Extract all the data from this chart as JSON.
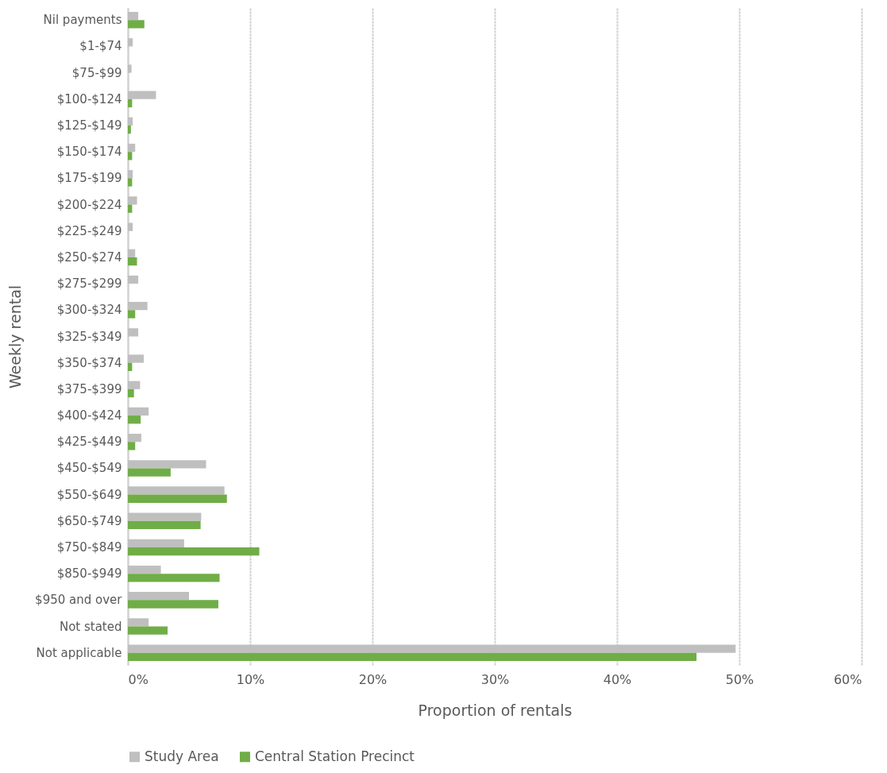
{
  "chart_data": {
    "type": "bar",
    "orientation": "horizontal",
    "xlabel": "Proportion of rentals",
    "ylabel": "Weekly rental",
    "categories": [
      "Nil payments",
      "$1-$74",
      "$75-$99",
      "$100-$124",
      "$125-$149",
      "$150-$174",
      "$175-$199",
      "$200-$224",
      "$225-$249",
      "$250-$274",
      "$275-$299",
      "$300-$324",
      "$325-$349",
      "$350-$374",
      "$375-$399",
      "$400-$424",
      "$425-$449",
      "$450-$549",
      "$550-$649",
      "$650-$749",
      "$750-$849",
      "$850-$949",
      "$950 and over",
      "Not stated",
      "Not applicable"
    ],
    "series": [
      {
        "name": "Study Area",
        "color": "#bfbfbf",
        "values": [
          0.85,
          0.4,
          0.3,
          2.3,
          0.4,
          0.6,
          0.4,
          0.75,
          0.4,
          0.6,
          0.85,
          1.6,
          0.85,
          1.3,
          1.0,
          1.7,
          1.1,
          6.4,
          7.9,
          6.0,
          4.6,
          2.7,
          5.0,
          1.7,
          49.7
        ]
      },
      {
        "name": "Central Station Precinct",
        "color": "#70ad47",
        "values": [
          1.35,
          0,
          0,
          0.35,
          0.25,
          0.35,
          0.35,
          0.35,
          0,
          0.75,
          0,
          0.6,
          0,
          0.35,
          0.5,
          1.05,
          0.6,
          3.5,
          8.1,
          5.95,
          10.75,
          7.5,
          7.4,
          3.25,
          46.5
        ]
      }
    ],
    "xlim": [
      0,
      60
    ],
    "xticks": [
      {
        "value": 0,
        "label": "0%"
      },
      {
        "value": 10,
        "label": "10%"
      },
      {
        "value": 20,
        "label": "20%"
      },
      {
        "value": 30,
        "label": "30%"
      },
      {
        "value": 40,
        "label": "40%"
      },
      {
        "value": 50,
        "label": "50%"
      },
      {
        "value": 60,
        "label": "60%"
      }
    ],
    "grid": "x",
    "legend": "bottom"
  }
}
